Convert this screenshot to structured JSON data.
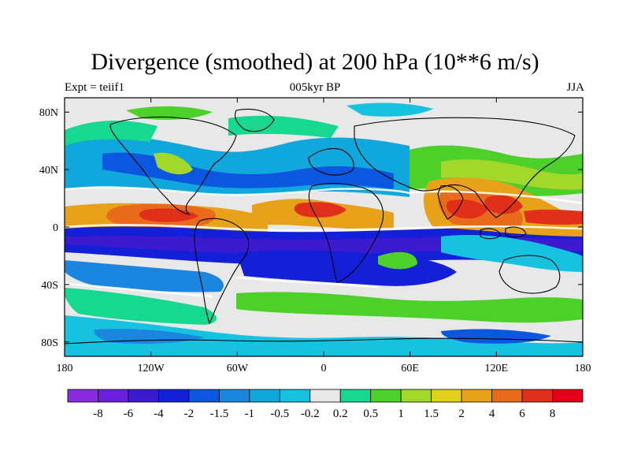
{
  "title": "Divergence (smoothed) at 200 hPa (10**6 m/s)",
  "left_subtitle": "Expt = teiif1",
  "center_subtitle": "005kyr BP",
  "right_subtitle": "JJA",
  "axes": {
    "lon_ticks": [
      "180",
      "120W",
      "60W",
      "0",
      "60E",
      "120E",
      "180"
    ],
    "lat_ticks": [
      "80N",
      "40N",
      "0",
      "40S",
      "80S"
    ]
  },
  "colorbar": {
    "labels": [
      "-8",
      "-6",
      "-4",
      "-2",
      "-1.5",
      "-1",
      "-0.5",
      "-0.2",
      "0.2",
      "0.5",
      "1",
      "1.5",
      "2",
      "4",
      "6",
      "8"
    ],
    "colors": [
      "#8a2be2",
      "#6a1fe0",
      "#3c1ad0",
      "#1420d8",
      "#0b57e0",
      "#1a86e0",
      "#10a8dc",
      "#16c2e0",
      "#e8e8e8",
      "#16d890",
      "#4ed02a",
      "#a2d82a",
      "#e0d21a",
      "#e8a21a",
      "#e86a1a",
      "#e0301a",
      "#e0001a"
    ]
  }
}
